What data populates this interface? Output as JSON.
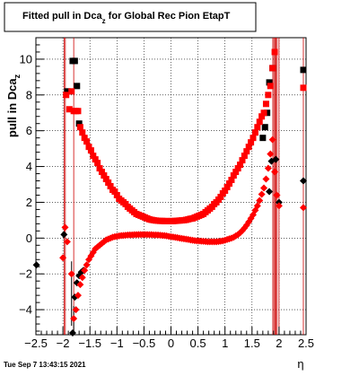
{
  "footer": {
    "timestamp": "Tue Sep  7 13:43:15 2021"
  },
  "chart_data": {
    "type": "scatter",
    "title": "Fitted pull in Dca_z for Global Rec Pion EtapT",
    "title_main": "Fitted pull in Dca",
    "title_sub": "z",
    "title_tail": " for Global Rec Pion EtapT",
    "ylabel_main": "pull in Dca",
    "ylabel_sub": "z",
    "xlabel": "η",
    "xlim": [
      -2.5,
      2.5
    ],
    "ylim": [
      -5.4,
      11.2
    ],
    "xticks": [
      -2.5,
      -2,
      -1.5,
      -1,
      -0.5,
      0,
      0.5,
      1,
      1.5,
      2,
      2.5
    ],
    "xtick_labels": [
      "−2.5",
      "−2",
      "−1.5",
      "−1",
      "−0.5",
      "0",
      "0.5",
      "1",
      "1.5",
      "2",
      "2.5"
    ],
    "yticks": [
      -4,
      -2,
      0,
      2,
      4,
      6,
      8,
      10
    ],
    "ytick_labels": [
      "−4",
      "−2",
      "0",
      "2",
      "4",
      "6",
      "8",
      "10"
    ],
    "grid": true,
    "colors": {
      "red": "#ff0000",
      "black": "#000000",
      "curve_red": "#cc0000"
    },
    "series": [
      {
        "marker": "square",
        "color": "#000000",
        "x": [
          -1.92,
          -1.82,
          -1.78,
          -1.74,
          -1.7,
          1.7,
          1.74,
          1.78,
          1.82,
          1.88,
          2.45
        ],
        "y": [
          8.2,
          9.9,
          9.9,
          8.5,
          6.4,
          5.6,
          6.2,
          7.0,
          8.7,
          9.5,
          9.4
        ]
      },
      {
        "marker": "square",
        "color": "#ff0000",
        "x": [
          -1.94,
          -1.88,
          -1.84,
          -1.8,
          -1.76,
          -1.72,
          -1.68,
          -1.64,
          -1.6,
          -1.56,
          -1.52,
          -1.48,
          -1.44,
          -1.4,
          -1.36,
          -1.32,
          -1.28,
          -1.24,
          -1.2,
          -1.16,
          -1.12,
          -1.08,
          -1.04,
          -1.0,
          -0.96,
          -0.92,
          -0.88,
          -0.84,
          -0.8,
          -0.76,
          -0.72,
          -0.68,
          -0.64,
          -0.6,
          -0.56,
          -0.52,
          -0.48,
          -0.44,
          -0.4,
          -0.36,
          -0.32,
          -0.28,
          -0.24,
          -0.2,
          -0.16,
          -0.12,
          -0.08,
          -0.04,
          0.0,
          0.04,
          0.08,
          0.12,
          0.16,
          0.2,
          0.24,
          0.28,
          0.32,
          0.36,
          0.4,
          0.44,
          0.48,
          0.52,
          0.56,
          0.6,
          0.64,
          0.68,
          0.72,
          0.76,
          0.8,
          0.84,
          0.88,
          0.92,
          0.96,
          1.0,
          1.04,
          1.08,
          1.12,
          1.16,
          1.2,
          1.24,
          1.28,
          1.32,
          1.36,
          1.4,
          1.44,
          1.48,
          1.52,
          1.56,
          1.6,
          1.64,
          1.68,
          1.72,
          1.76,
          1.8,
          1.84,
          1.88,
          1.92,
          2.45
        ],
        "y": [
          8.0,
          7.2,
          8.2,
          7.1,
          7.1,
          7.1,
          6.2,
          5.9,
          5.6,
          5.4,
          5.1,
          4.9,
          4.6,
          4.4,
          4.2,
          3.9,
          3.7,
          3.5,
          3.3,
          3.1,
          2.9,
          2.7,
          2.6,
          2.4,
          2.2,
          2.1,
          2.0,
          1.9,
          1.75,
          1.65,
          1.55,
          1.45,
          1.35,
          1.3,
          1.25,
          1.2,
          1.15,
          1.1,
          1.05,
          1.02,
          1.0,
          0.98,
          0.97,
          0.96,
          0.96,
          0.95,
          0.95,
          0.95,
          0.95,
          0.95,
          0.96,
          0.97,
          0.98,
          0.99,
          1.0,
          1.02,
          1.05,
          1.08,
          1.1,
          1.15,
          1.2,
          1.25,
          1.3,
          1.35,
          1.45,
          1.55,
          1.65,
          1.75,
          1.9,
          2.0,
          2.15,
          2.3,
          2.5,
          2.65,
          2.85,
          3.05,
          3.25,
          3.5,
          3.7,
          3.9,
          4.1,
          4.35,
          4.6,
          4.85,
          5.1,
          5.35,
          5.6,
          5.9,
          6.2,
          6.5,
          6.8,
          7.0,
          7.5,
          8.0,
          8.5,
          9.5,
          10.4,
          8.4
        ]
      },
      {
        "marker": "diamond",
        "color": "#000000",
        "x": [
          -2.49,
          -1.98,
          -1.82,
          -1.78,
          -1.74,
          -1.7,
          -1.66,
          -1.62,
          1.82,
          1.86,
          1.94,
          2.0,
          2.45
        ],
        "y": [
          -1.5,
          0.2,
          -5.3,
          -3.3,
          -2.5,
          -2.1,
          -1.9,
          -1.8,
          2.6,
          4.3,
          4.4,
          2.0,
          3.2
        ]
      },
      {
        "marker": "diamond",
        "color": "#ff0000",
        "x": [
          -2.0,
          -1.96,
          -1.92,
          -1.84,
          -1.8,
          -1.76,
          -1.72,
          -1.68,
          -1.64,
          -1.6,
          -1.56,
          -1.52,
          -1.48,
          -1.44,
          -1.4,
          -1.36,
          -1.32,
          -1.28,
          -1.24,
          -1.2,
          -1.16,
          -1.12,
          -1.08,
          -1.04,
          -1.0,
          -0.96,
          -0.92,
          -0.88,
          -0.84,
          -0.8,
          -0.76,
          -0.72,
          -0.68,
          -0.64,
          -0.6,
          -0.56,
          -0.52,
          -0.48,
          -0.44,
          -0.4,
          -0.36,
          -0.32,
          -0.28,
          -0.24,
          -0.2,
          -0.16,
          -0.12,
          -0.08,
          -0.04,
          0.0,
          0.04,
          0.08,
          0.12,
          0.16,
          0.2,
          0.24,
          0.28,
          0.32,
          0.36,
          0.4,
          0.44,
          0.48,
          0.52,
          0.56,
          0.6,
          0.64,
          0.68,
          0.72,
          0.76,
          0.8,
          0.84,
          0.88,
          0.92,
          0.96,
          1.0,
          1.04,
          1.08,
          1.12,
          1.16,
          1.2,
          1.24,
          1.28,
          1.32,
          1.36,
          1.4,
          1.44,
          1.48,
          1.52,
          1.56,
          1.6,
          1.64,
          1.68,
          1.72,
          1.76,
          1.8,
          1.84,
          1.88,
          1.92,
          1.96,
          2.0,
          2.45
        ],
        "y": [
          -1.1,
          0.6,
          -0.2,
          -2.0,
          -4.5,
          -4.0,
          -3.2,
          -2.6,
          -2.2,
          -1.8,
          -1.5,
          -1.2,
          -1.0,
          -0.8,
          -0.6,
          -0.5,
          -0.4,
          -0.3,
          -0.2,
          -0.1,
          -0.05,
          0.0,
          0.05,
          0.08,
          0.1,
          0.12,
          0.14,
          0.15,
          0.16,
          0.17,
          0.18,
          0.18,
          0.19,
          0.19,
          0.2,
          0.2,
          0.2,
          0.2,
          0.2,
          0.19,
          0.19,
          0.18,
          0.18,
          0.17,
          0.16,
          0.15,
          0.14,
          0.12,
          0.1,
          0.08,
          0.06,
          0.04,
          0.02,
          0.0,
          -0.02,
          -0.04,
          -0.06,
          -0.08,
          -0.1,
          -0.12,
          -0.14,
          -0.15,
          -0.16,
          -0.17,
          -0.18,
          -0.19,
          -0.2,
          -0.2,
          -0.2,
          -0.2,
          -0.2,
          -0.19,
          -0.17,
          -0.15,
          -0.12,
          -0.08,
          -0.04,
          0.0,
          0.05,
          0.12,
          0.2,
          0.3,
          0.42,
          0.56,
          0.72,
          0.9,
          1.1,
          1.3,
          1.55,
          1.8,
          2.1,
          2.45,
          2.8,
          3.3,
          3.9,
          4.7,
          5.5,
          3.7,
          2.4,
          1.8,
          1.7
        ]
      }
    ],
    "vertical_lines_x": [
      -1.975,
      -1.955,
      -1.8,
      1.885,
      1.905,
      1.925,
      1.945,
      1.965,
      2.0,
      2.45
    ],
    "error_bars": [
      {
        "x": -1.84,
        "y_low": -4.9,
        "y_high": -1.3
      },
      {
        "x": -1.8,
        "y_low": -5.2,
        "y_high": -3.8
      }
    ]
  }
}
